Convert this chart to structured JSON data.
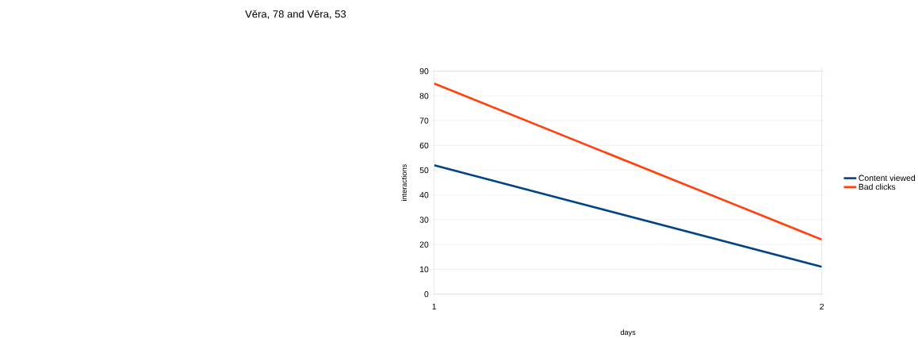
{
  "chart_data": {
    "type": "line",
    "title": "Věra, 78 and Věra, 53",
    "xlabel": "days",
    "ylabel": "interactions",
    "x": [
      1,
      2
    ],
    "xlim": [
      1,
      2
    ],
    "xticks": [
      1,
      2
    ],
    "ylim": [
      0,
      90
    ],
    "yticks": [
      0,
      10,
      20,
      30,
      40,
      50,
      60,
      70,
      80,
      90
    ],
    "series": [
      {
        "name": "Content viewed",
        "color": "#004586",
        "values": [
          52,
          11
        ]
      },
      {
        "name": "Bad clicks",
        "color": "#ff420e",
        "values": [
          85,
          22
        ]
      }
    ],
    "grid": "y",
    "legend": "right",
    "marker": "none",
    "line_style": "solid"
  }
}
